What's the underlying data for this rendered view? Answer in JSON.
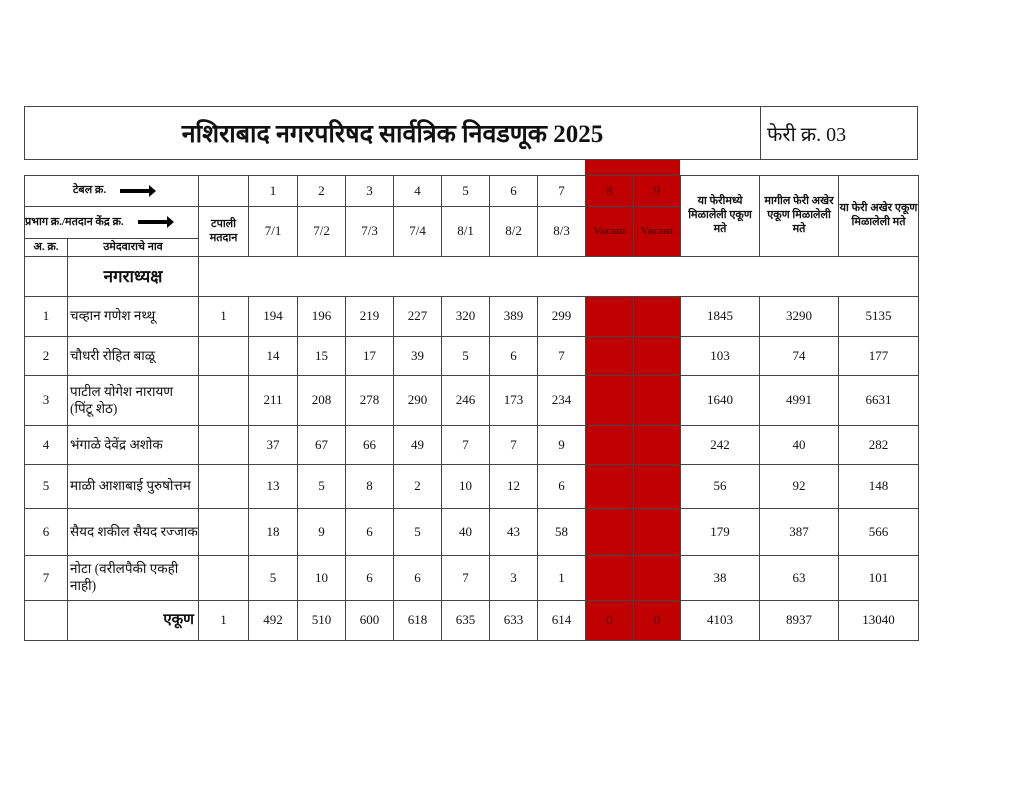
{
  "title": "नशिराबाद नगरपरिषद सार्वत्रिक निवडणूक 2025",
  "round": "फेरी क्र. 03",
  "colors": {
    "vacant_fill": "#c00000",
    "vacant_text": "#5a0000"
  },
  "header": {
    "table_no_label": "टेबल क्र.",
    "booth_label": "प्रभाग क्र./मतदान केंद्र क्र.",
    "postal_label": "टपाली मतदान",
    "sr_label": "अ. क्र.",
    "candidate_label": "उमेदवाराचे नाव",
    "table_numbers": [
      "1",
      "2",
      "3",
      "4",
      "5",
      "6",
      "7",
      "8",
      "9"
    ],
    "booths": [
      "7/1",
      "7/2",
      "7/3",
      "7/4",
      "8/1",
      "8/2",
      "8/3",
      "Vacant",
      "Vacant"
    ],
    "this_round_total": "या फेरीमध्ये मिळालेली एकूण मते",
    "previous_total": "मागील फेरी अखेर एकूण मिळालेली मते",
    "cumulative_total": "या फेरी अखेर एकूण मिळालेली मते"
  },
  "section": "नगराध्यक्ष",
  "rows": [
    {
      "sr": "1",
      "name": "चव्हान गणेश नथ्थू",
      "postal": "1",
      "t": [
        "194",
        "196",
        "219",
        "227",
        "320",
        "389",
        "299",
        "",
        ""
      ],
      "round": "1845",
      "prev": "3290",
      "cum": "5135"
    },
    {
      "sr": "2",
      "name": "चौधरी रोहित बाळू",
      "postal": "",
      "t": [
        "14",
        "15",
        "17",
        "39",
        "5",
        "6",
        "7",
        "",
        ""
      ],
      "round": "103",
      "prev": "74",
      "cum": "177"
    },
    {
      "sr": "3",
      "name": "पाटील योगेश नारायण (पिंटू शेठ)",
      "postal": "",
      "t": [
        "211",
        "208",
        "278",
        "290",
        "246",
        "173",
        "234",
        "",
        ""
      ],
      "round": "1640",
      "prev": "4991",
      "cum": "6631"
    },
    {
      "sr": "4",
      "name": "भंगाळे देवेंद्र अशोक",
      "postal": "",
      "t": [
        "37",
        "67",
        "66",
        "49",
        "7",
        "7",
        "9",
        "",
        ""
      ],
      "round": "242",
      "prev": "40",
      "cum": "282"
    },
    {
      "sr": "5",
      "name": "माळी आशाबाई पुरुषोत्तम",
      "postal": "",
      "t": [
        "13",
        "5",
        "8",
        "2",
        "10",
        "12",
        "6",
        "",
        ""
      ],
      "round": "56",
      "prev": "92",
      "cum": "148"
    },
    {
      "sr": "6",
      "name": "सैयद शकील सैयद रज्जाक",
      "postal": "",
      "t": [
        "18",
        "9",
        "6",
        "5",
        "40",
        "43",
        "58",
        "",
        ""
      ],
      "round": "179",
      "prev": "387",
      "cum": "566"
    },
    {
      "sr": "7",
      "name": "नोटा (वरीलपैकी एकही नाही)",
      "postal": "",
      "t": [
        "5",
        "10",
        "6",
        "6",
        "7",
        "3",
        "1",
        "",
        ""
      ],
      "round": "38",
      "prev": "63",
      "cum": "101"
    }
  ],
  "total": {
    "label": "एकूण",
    "postal": "1",
    "t": [
      "492",
      "510",
      "600",
      "618",
      "635",
      "633",
      "614",
      "0",
      "0"
    ],
    "round": "4103",
    "prev": "8937",
    "cum": "13040"
  }
}
